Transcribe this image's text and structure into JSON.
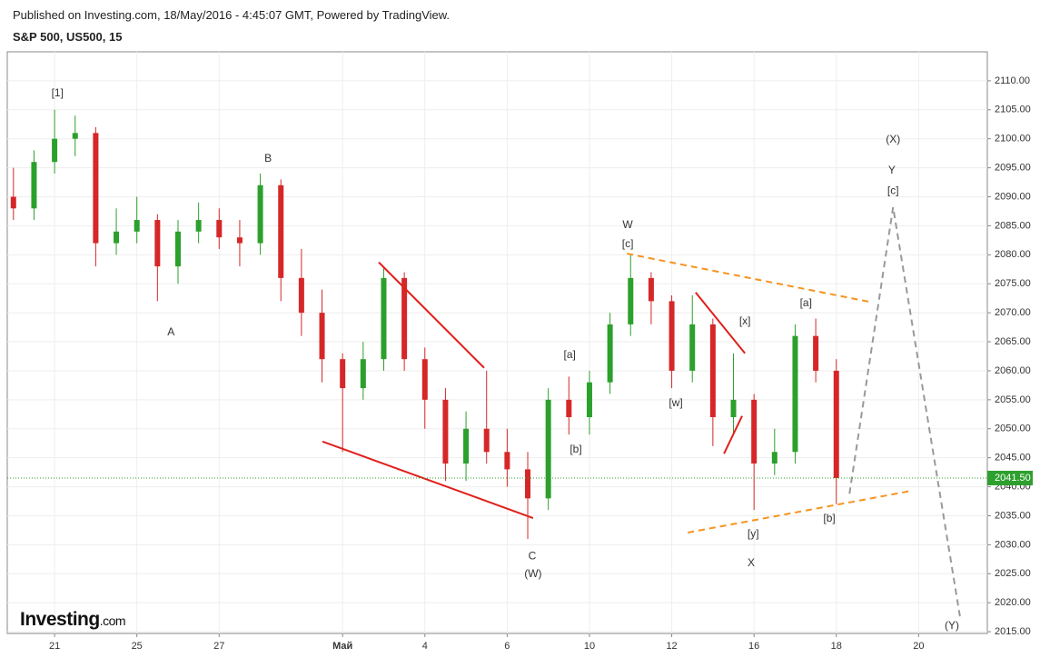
{
  "header": {
    "published": "Published on Investing.com, 18/May/2016 - 4:45:07 GMT, Powered by TradingView.",
    "symbol": "S&P 500, US500, 15"
  },
  "logo": {
    "brand": "Investing",
    "suffix": ".com"
  },
  "chart_data": {
    "type": "candlestick",
    "x": [
      -1,
      -0.5,
      0,
      0.5,
      1,
      1.5,
      2,
      2.5,
      3,
      3.5,
      4,
      4.5,
      5,
      5.5,
      6,
      6.5,
      7,
      7.5,
      8,
      8.5,
      9,
      9.5,
      10,
      10.5,
      11,
      11.5,
      12,
      12.5,
      13,
      13.5,
      14,
      14.5,
      15,
      15.5,
      16,
      16.5,
      17,
      17.5,
      18,
      18.5,
      19
    ],
    "open": [
      2090,
      2088,
      2096,
      2100,
      2101,
      2082,
      2084,
      2086,
      2078,
      2084,
      2086,
      2083,
      2082,
      2092,
      2076,
      2070,
      2062,
      2057,
      2062,
      2076,
      2062,
      2055,
      2044,
      2050,
      2046,
      2043,
      2038,
      2055,
      2052,
      2058,
      2068,
      2076,
      2072,
      2060,
      2068,
      2052,
      2055,
      2044,
      2046,
      2066,
      2060
    ],
    "high": [
      2095,
      2098,
      2105,
      2104,
      2102,
      2088,
      2090,
      2087,
      2086,
      2089,
      2088,
      2086,
      2094,
      2093,
      2081,
      2074,
      2063,
      2065,
      2078,
      2077,
      2064,
      2057,
      2053,
      2060,
      2050,
      2046,
      2057,
      2059,
      2060,
      2070,
      2080,
      2077,
      2073,
      2073,
      2069,
      2063,
      2056,
      2050,
      2068,
      2069,
      2062
    ],
    "low": [
      2086,
      2086,
      2094,
      2097,
      2078,
      2080,
      2082,
      2072,
      2075,
      2082,
      2081,
      2078,
      2080,
      2072,
      2066,
      2058,
      2046,
      2055,
      2060,
      2060,
      2050,
      2041,
      2041,
      2044,
      2040,
      2031,
      2036,
      2049,
      2049,
      2056,
      2066,
      2068,
      2057,
      2058,
      2047,
      2049,
      2036,
      2042,
      2044,
      2058,
      2037
    ],
    "close": [
      2088,
      2096,
      2100,
      2101,
      2082,
      2084,
      2086,
      2078,
      2084,
      2086,
      2083,
      2082,
      2092,
      2076,
      2070,
      2062,
      2057,
      2062,
      2076,
      2062,
      2055,
      2044,
      2050,
      2046,
      2043,
      2038,
      2055,
      2052,
      2058,
      2068,
      2076,
      2072,
      2060,
      2068,
      2052,
      2055,
      2044,
      2046,
      2066,
      2060,
      2041.5
    ],
    "up_color": "#2ca02c",
    "down_color": "#d62728",
    "xlim": [
      -1.15,
      22.67
    ],
    "ylim": [
      2014.7,
      2115.0
    ],
    "xticks": [
      {
        "value": 0,
        "label": "21"
      },
      {
        "value": 2,
        "label": "25"
      },
      {
        "value": 4,
        "label": "27"
      },
      {
        "value": 7,
        "label": "Май"
      },
      {
        "value": 9,
        "label": "4"
      },
      {
        "value": 11,
        "label": "6"
      },
      {
        "value": 13,
        "label": "10"
      },
      {
        "value": 15,
        "label": "12"
      },
      {
        "value": 17,
        "label": "16"
      },
      {
        "value": 19,
        "label": "18"
      },
      {
        "value": 21,
        "label": "20"
      }
    ],
    "yticks": [
      {
        "value": 2015,
        "label": "2015.00"
      },
      {
        "value": 2020,
        "label": "2020.00"
      },
      {
        "value": 2025,
        "label": "2025.00"
      },
      {
        "value": 2030,
        "label": "2030.00"
      },
      {
        "value": 2035,
        "label": "2035.00"
      },
      {
        "value": 2040,
        "label": "2040.00"
      },
      {
        "value": 2045,
        "label": "2045.00"
      },
      {
        "value": 2050,
        "label": "2050.00"
      },
      {
        "value": 2055,
        "label": "2055.00"
      },
      {
        "value": 2060,
        "label": "2060.00"
      },
      {
        "value": 2065,
        "label": "2065.00"
      },
      {
        "value": 2070,
        "label": "2070.00"
      },
      {
        "value": 2075,
        "label": "2075.00"
      },
      {
        "value": 2080,
        "label": "2080.00"
      },
      {
        "value": 2085,
        "label": "2085.00"
      },
      {
        "value": 2090,
        "label": "2090.00"
      },
      {
        "value": 2095,
        "label": "2095.00"
      },
      {
        "value": 2100,
        "label": "2100.00"
      },
      {
        "value": 2105,
        "label": "2105.00"
      },
      {
        "value": 2110,
        "label": "2110.00"
      }
    ],
    "grid": true,
    "last_price": {
      "value": 2041.5,
      "label": "2041.50",
      "color": "#2da02d"
    },
    "annotations": [
      {
        "text": "[1]",
        "x": 0.07,
        "y": 2107.8
      },
      {
        "text": "B",
        "x": 5.19,
        "y": 2096.5
      },
      {
        "text": "A",
        "x": 2.83,
        "y": 2066.6
      },
      {
        "text": "W",
        "x": 13.93,
        "y": 2085.1
      },
      {
        "text": "[c]",
        "x": 13.93,
        "y": 2081.8
      },
      {
        "text": "[a]",
        "x": 12.52,
        "y": 2062.7
      },
      {
        "text": "[b]",
        "x": 12.67,
        "y": 2046.4
      },
      {
        "text": "C",
        "x": 11.61,
        "y": 2028.0
      },
      {
        "text": "(W)",
        "x": 11.63,
        "y": 2024.9
      },
      {
        "text": "[x]",
        "x": 16.78,
        "y": 2068.5
      },
      {
        "text": "[w]",
        "x": 15.1,
        "y": 2054.4
      },
      {
        "text": "[y]",
        "x": 16.98,
        "y": 2031.8
      },
      {
        "text": "X",
        "x": 16.93,
        "y": 2026.8
      },
      {
        "text": "[a]",
        "x": 18.26,
        "y": 2071.6
      },
      {
        "text": "[b]",
        "x": 18.83,
        "y": 2034.5
      },
      {
        "text": "(X)",
        "x": 20.38,
        "y": 2099.8
      },
      {
        "text": "Y",
        "x": 20.35,
        "y": 2094.5
      },
      {
        "text": "[c]",
        "x": 20.38,
        "y": 2091.0
      },
      {
        "text": "(Y)",
        "x": 21.81,
        "y": 2016.0
      }
    ],
    "trendlines": [
      {
        "color": "#e0201b",
        "dashed": false,
        "points": [
          [
            7.88,
            2078.7
          ],
          [
            10.44,
            2060.5
          ]
        ]
      },
      {
        "color": "#e0201b",
        "dashed": false,
        "points": [
          [
            6.51,
            2047.8
          ],
          [
            11.63,
            2034.6
          ]
        ]
      },
      {
        "color": "#e0201b",
        "dashed": false,
        "points": [
          [
            15.58,
            2073.5
          ],
          [
            16.78,
            2063.0
          ]
        ]
      },
      {
        "color": "#e0201b",
        "dashed": false,
        "points": [
          [
            16.27,
            2045.7
          ],
          [
            16.71,
            2052.2
          ]
        ]
      },
      {
        "color": "#f7931e",
        "dashed": true,
        "points": [
          [
            13.91,
            2080.2
          ],
          [
            19.87,
            2071.8
          ]
        ]
      },
      {
        "color": "#f7931e",
        "dashed": true,
        "points": [
          [
            15.39,
            2032.1
          ],
          [
            20.75,
            2039.2
          ]
        ]
      },
      {
        "color": "#999999",
        "dashed": true,
        "points": [
          [
            19.32,
            2038.8
          ],
          [
            20.38,
            2088.2
          ],
          [
            22.01,
            2017.4
          ]
        ]
      }
    ]
  }
}
